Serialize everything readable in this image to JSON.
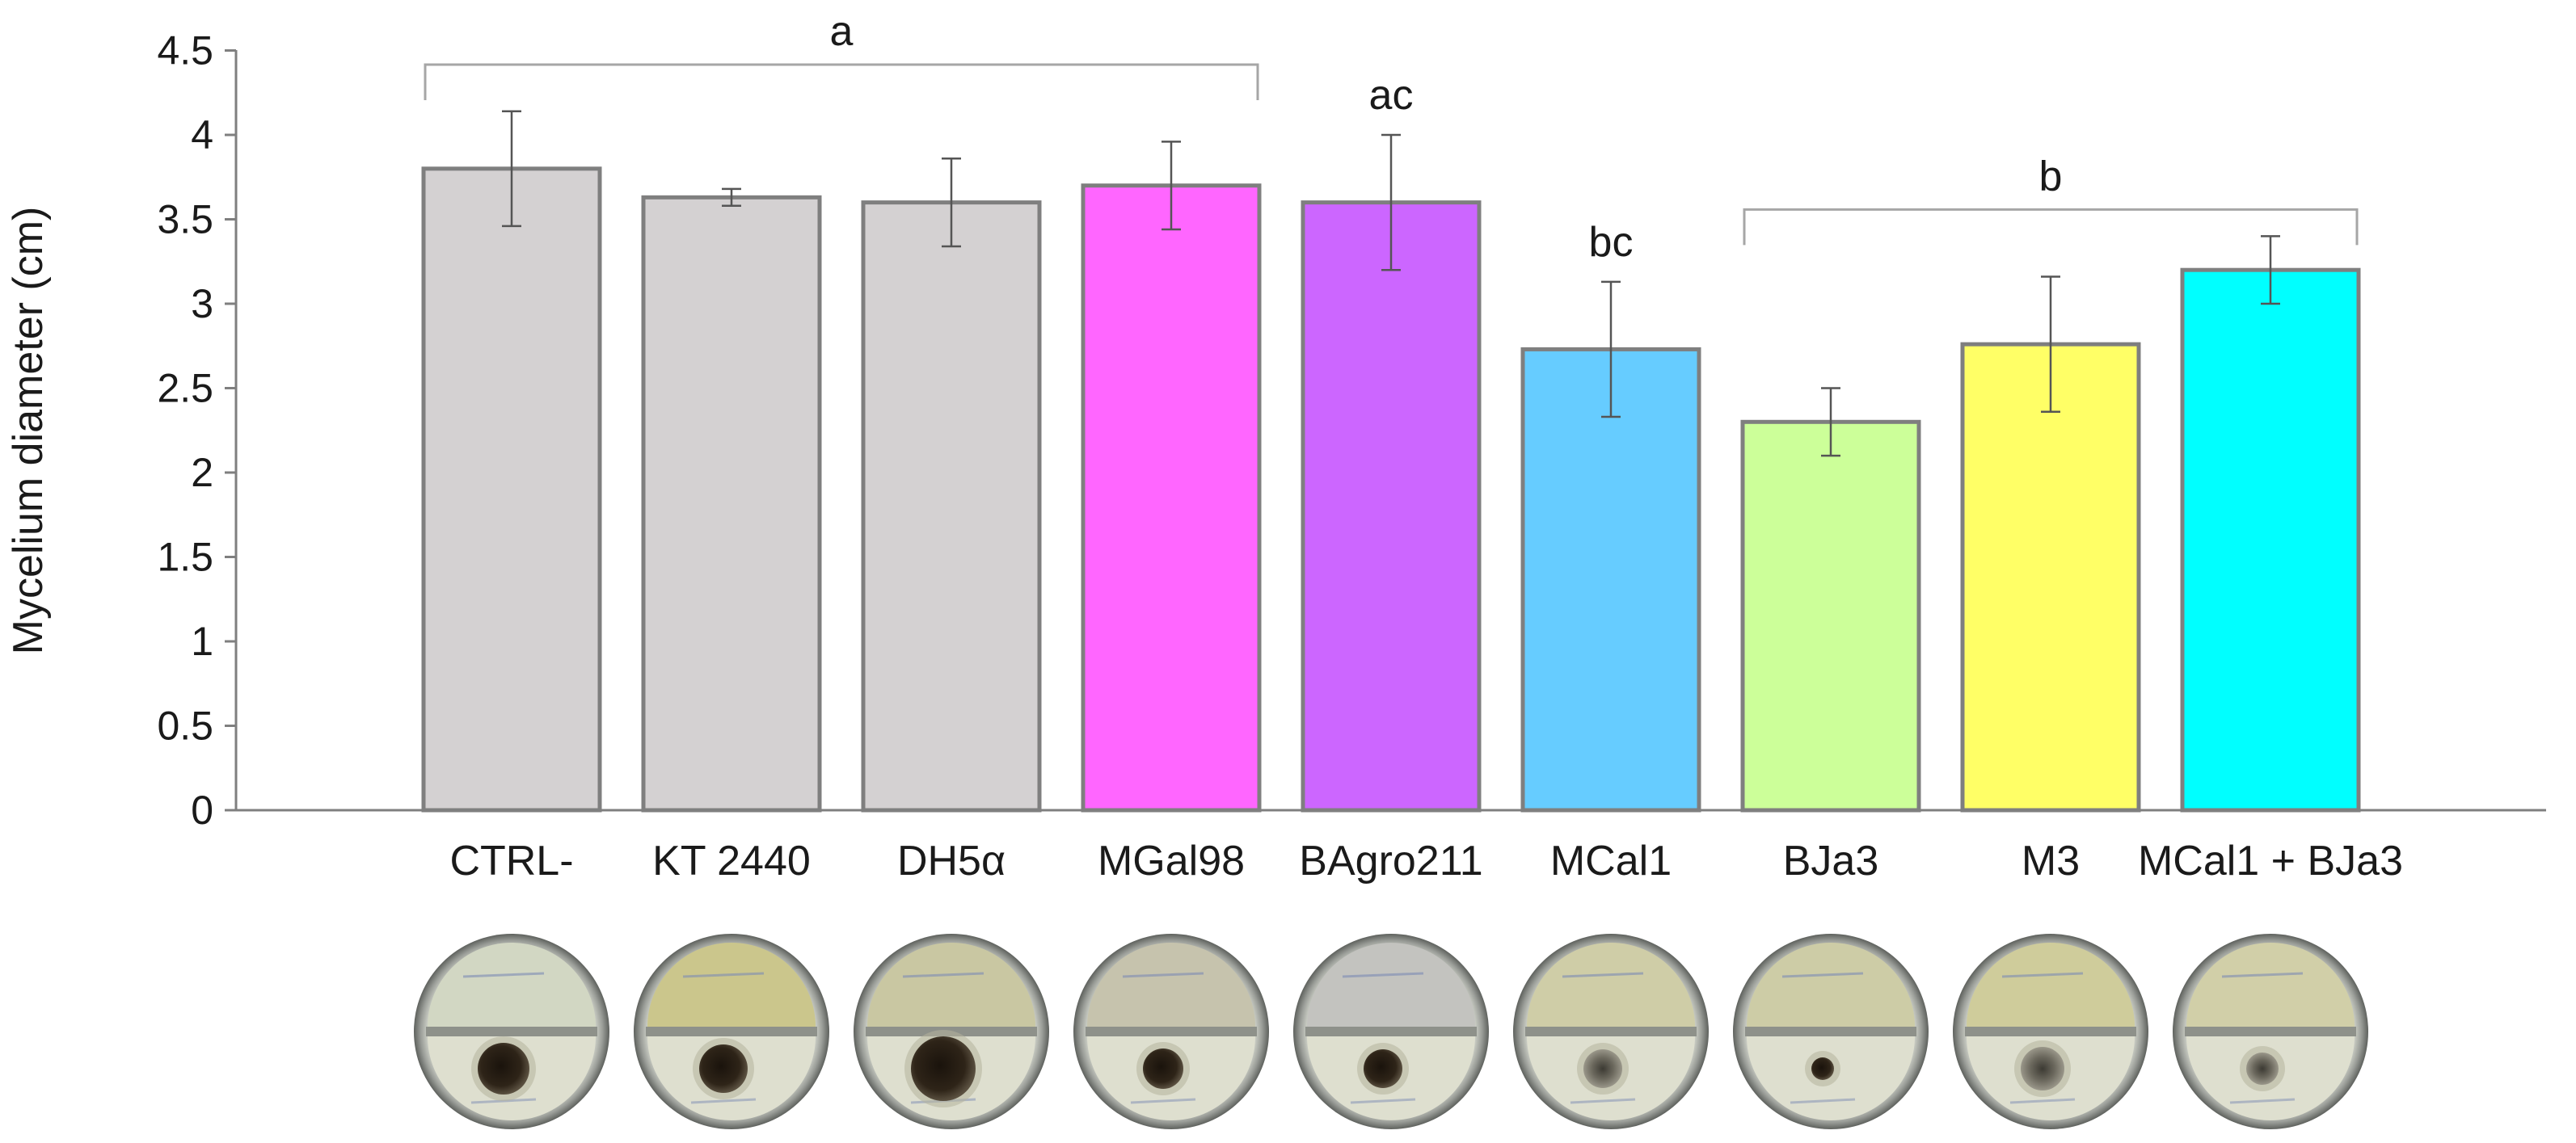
{
  "chart_data": {
    "type": "bar",
    "title": "",
    "xlabel": "",
    "ylabel": "Mycelium diameter (cm)",
    "ylim": [
      0,
      4.5
    ],
    "ytick_step": 0.5,
    "ytick_labels": [
      "0",
      "0.5",
      "1",
      "1.5",
      "2",
      "2.5",
      "3",
      "3.5",
      "4",
      "4.5"
    ],
    "categories": [
      "CTRL-",
      "KT 2440",
      "DH5α",
      "MGal98",
      "BAgro211",
      "MCal1",
      "BJa3",
      "M3",
      "MCal1 + BJa3"
    ],
    "values": [
      3.8,
      3.63,
      3.6,
      3.7,
      3.6,
      2.73,
      2.3,
      2.76,
      3.2
    ],
    "errors": [
      0.34,
      0.05,
      0.26,
      0.26,
      0.4,
      0.4,
      0.2,
      0.4,
      0.2
    ],
    "colors": [
      "#d4d1d2",
      "#d4d1d2",
      "#d4d1d2",
      "#ff66ff",
      "#cc66ff",
      "#66ccff",
      "#ccff99",
      "#ffff66",
      "#00ffff"
    ],
    "bar_edge_color": "#7f7f7f",
    "significance_groups": [
      {
        "label": "a",
        "from": 0,
        "to": 3,
        "bracket": true
      },
      {
        "label": "ac",
        "from": 4,
        "to": 4,
        "bracket": false
      },
      {
        "label": "bc",
        "from": 5,
        "to": 5,
        "bracket": false
      },
      {
        "label": "b",
        "from": 6,
        "to": 8,
        "bracket": true
      }
    ],
    "plate_photos": [
      "CTRL-",
      "KT 2440",
      "DH5α",
      "MGal98",
      "BAgro211",
      "MCal1",
      "BJa3",
      "M3",
      "MCal1 + BJa3"
    ]
  }
}
